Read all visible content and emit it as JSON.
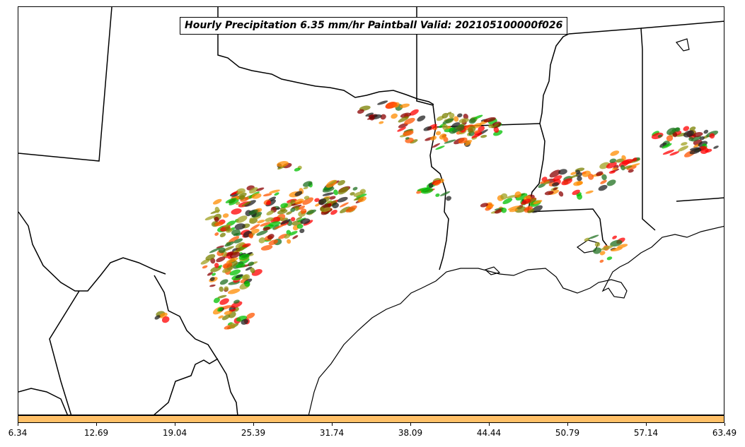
{
  "title": "Hourly Precipitation 6.35 mm/hr Paintball Valid: 202105100000f026",
  "colorbar": {
    "color": "#FFC067",
    "ticks": [
      "6.34",
      "12.69",
      "19.04",
      "25.39",
      "31.74",
      "38.09",
      "44.44",
      "50.79",
      "57.14",
      "63.49"
    ]
  },
  "paintball_colors": [
    "#ff8c00",
    "#ff0000",
    "#8b0000",
    "#00c000",
    "#7a8000",
    "#222222",
    "#ff5500",
    "#a0a020",
    "#207020"
  ]
}
